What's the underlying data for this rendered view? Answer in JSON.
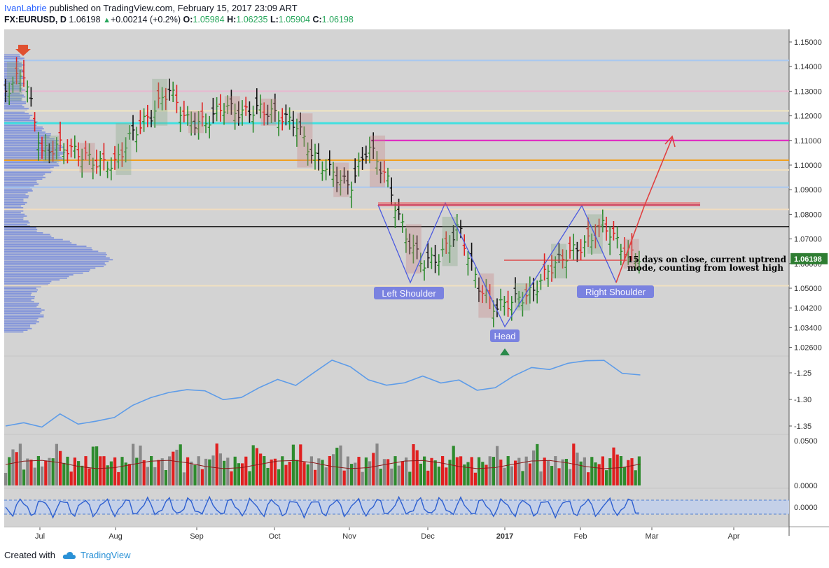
{
  "header": {
    "author": "IvanLabrie",
    "published": " published on TradingView.com, February 15, 2017 23:09 ART",
    "symbol": "FX:EURUSD, D",
    "last": "1.06198",
    "change": "+0.00214 (+0.2%)",
    "o_label": "O:",
    "o_value": "1.05984",
    "h_label": "H:",
    "h_value": "1.06235",
    "l_label": "L:",
    "l_value": "1.05904",
    "c_label": "C:",
    "c_value": "1.06198"
  },
  "footer": {
    "created_with": "Created with",
    "brand": "TradingView"
  },
  "colors": {
    "up": "#2e8b2e",
    "down": "#e02020",
    "bg": "#d3d3d3",
    "line": "#5e9ce8",
    "pattern": "#4b5ae0",
    "magenta": "#e020c0",
    "orange": "#f0a020",
    "cyan": "#40e0e0"
  },
  "chart_data": [
    {
      "type": "line",
      "title": "",
      "series": [
        {
          "x": [
            "2016-06-15",
            "2016-06-22",
            "2016-06-29",
            "2016-07-06",
            "2016-07-13",
            "2016-07-20",
            "2016-07-27",
            "2016-08-03",
            "2016-08-10",
            "2016-08-17",
            "2016-08-24",
            "2016-08-31",
            "2016-09-07",
            "2016-09-14",
            "2016-09-21",
            "2016-09-28",
            "2016-10-05",
            "2016-10-12",
            "2016-10-19",
            "2016-10-26",
            "2016-11-02",
            "2016-11-09",
            "2016-11-16",
            "2016-11-23",
            "2016-11-30",
            "2016-12-07",
            "2016-12-14",
            "2016-12-21",
            "2016-12-28",
            "2017-01-04",
            "2017-01-11",
            "2017-01-18",
            "2017-01-25",
            "2017-02-01",
            "2017-02-08",
            "2017-02-15"
          ],
          "values": [
            1.13,
            1.138,
            1.105,
            1.108,
            1.105,
            1.101,
            1.1,
            1.113,
            1.12,
            1.131,
            1.118,
            1.117,
            1.124,
            1.121,
            1.123,
            1.12,
            1.117,
            1.103,
            1.097,
            1.091,
            1.108,
            1.095,
            1.072,
            1.06,
            1.063,
            1.075,
            1.052,
            1.042,
            1.045,
            1.048,
            1.058,
            1.064,
            1.068,
            1.076,
            1.066,
            1.062
          ]
        }
      ],
      "y_ticks": [
        "1.15000",
        "1.14000",
        "1.13000",
        "1.12000",
        "1.11000",
        "1.10000",
        "1.09000",
        "1.08000",
        "1.07000",
        "1.06000",
        "1.05000",
        "1.04200",
        "1.03400",
        "1.02600"
      ],
      "last_price_label": "1.06198",
      "x_ticks": [
        "Jul",
        "Aug",
        "Sep",
        "Oct",
        "Nov",
        "Dec",
        "2017",
        "Feb",
        "Mar",
        "Apr"
      ],
      "annotations": [
        "Left Shoulder",
        "Head",
        "Right Shoulder",
        "15 days on close, current uptrend",
        "mode, counting from lowest high"
      ],
      "horizontal_levels": [
        1.1425,
        1.13,
        1.122,
        1.117,
        1.11,
        1.102,
        1.098,
        1.091,
        1.082,
        1.075,
        1.051
      ]
    },
    {
      "type": "line",
      "series": [
        {
          "values": [
            -1.35,
            -1.34,
            -1.35,
            -1.33,
            -1.35,
            -1.34,
            -1.33,
            -1.31,
            -1.3,
            -1.29,
            -1.28,
            -1.28,
            -1.3,
            -1.3,
            -1.28,
            -1.26,
            -1.27,
            -1.25,
            -1.23,
            -1.24,
            -1.26,
            -1.27,
            -1.27,
            -1.26,
            -1.27,
            -1.26,
            -1.28,
            -1.28,
            -1.26,
            -1.24,
            -1.24,
            -1.23,
            -1.23,
            -1.23,
            -1.25,
            -1.25
          ]
        }
      ],
      "y_ticks": [
        "-1.25",
        "-1.30",
        "-1.35"
      ]
    },
    {
      "type": "bar",
      "y_ticks": [
        "0.0500",
        "0.0000"
      ]
    },
    {
      "type": "line",
      "y_ticks": [
        "0.0000"
      ]
    }
  ]
}
